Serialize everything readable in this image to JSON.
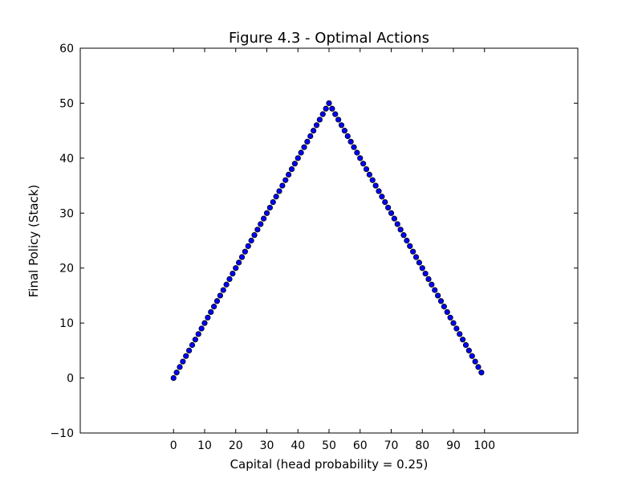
{
  "chart_data": {
    "type": "scatter",
    "title": "Figure 4.3 - Optimal Actions",
    "xlabel": "Capital (head probability = 0.25)",
    "ylabel": "Final Policy (Stack)",
    "xlim": [
      -30,
      130
    ],
    "ylim": [
      -10,
      60
    ],
    "x_ticks": [
      "0",
      "10",
      "20",
      "30",
      "40",
      "50",
      "60",
      "70",
      "80",
      "90",
      "100"
    ],
    "y_ticks": [
      "−10",
      "0",
      "10",
      "20",
      "30",
      "40",
      "50",
      "60"
    ],
    "grid": false,
    "marker_color": "#0000ff",
    "marker_edge_color": "#000000",
    "series": [
      {
        "x": [
          0,
          1,
          2,
          3,
          4,
          5,
          6,
          7,
          8,
          9,
          10,
          11,
          12,
          13,
          14,
          15,
          16,
          17,
          18,
          19,
          20,
          21,
          22,
          23,
          24,
          25,
          26,
          27,
          28,
          29,
          30,
          31,
          32,
          33,
          34,
          35,
          36,
          37,
          38,
          39,
          40,
          41,
          42,
          43,
          44,
          45,
          46,
          47,
          48,
          49,
          50,
          51,
          52,
          53,
          54,
          55,
          56,
          57,
          58,
          59,
          60,
          61,
          62,
          63,
          64,
          65,
          66,
          67,
          68,
          69,
          70,
          71,
          72,
          73,
          74,
          75,
          76,
          77,
          78,
          79,
          80,
          81,
          82,
          83,
          84,
          85,
          86,
          87,
          88,
          89,
          90,
          91,
          92,
          93,
          94,
          95,
          96,
          97,
          98,
          99
        ],
        "y": [
          0,
          1,
          2,
          3,
          4,
          5,
          6,
          7,
          8,
          9,
          10,
          11,
          12,
          13,
          14,
          15,
          16,
          17,
          18,
          19,
          20,
          21,
          22,
          23,
          24,
          25,
          26,
          27,
          28,
          29,
          30,
          31,
          32,
          33,
          34,
          35,
          36,
          37,
          38,
          39,
          40,
          41,
          42,
          43,
          44,
          45,
          46,
          47,
          48,
          49,
          50,
          49,
          48,
          47,
          46,
          45,
          44,
          43,
          42,
          41,
          40,
          39,
          38,
          37,
          36,
          35,
          34,
          33,
          32,
          31,
          30,
          29,
          28,
          27,
          26,
          25,
          24,
          23,
          22,
          21,
          20,
          19,
          18,
          17,
          16,
          15,
          14,
          13,
          12,
          11,
          10,
          9,
          8,
          7,
          6,
          5,
          4,
          3,
          2,
          1
        ]
      }
    ]
  }
}
